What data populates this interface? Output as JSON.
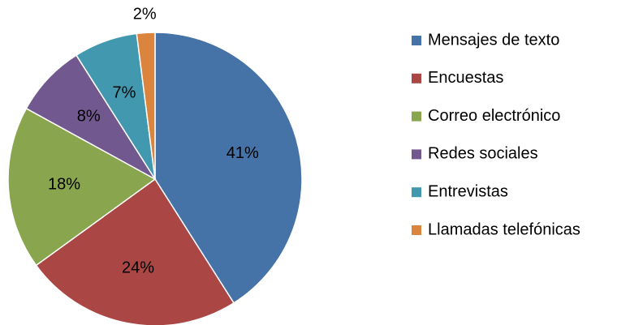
{
  "chart_data": {
    "type": "pie",
    "categories": [
      "Mensajes de texto",
      "Encuestas",
      "Correo electrónico",
      "Redes sociales",
      "Entrevistas",
      "Llamadas telefónicas"
    ],
    "values": [
      41,
      24,
      18,
      8,
      7,
      2
    ],
    "value_labels": [
      "41%",
      "24%",
      "18%",
      "8%",
      "7%",
      "2%"
    ],
    "colors": [
      "#4572a7",
      "#aa4643",
      "#89a54e",
      "#71588f",
      "#4198af",
      "#db843d"
    ],
    "legend": "right"
  }
}
